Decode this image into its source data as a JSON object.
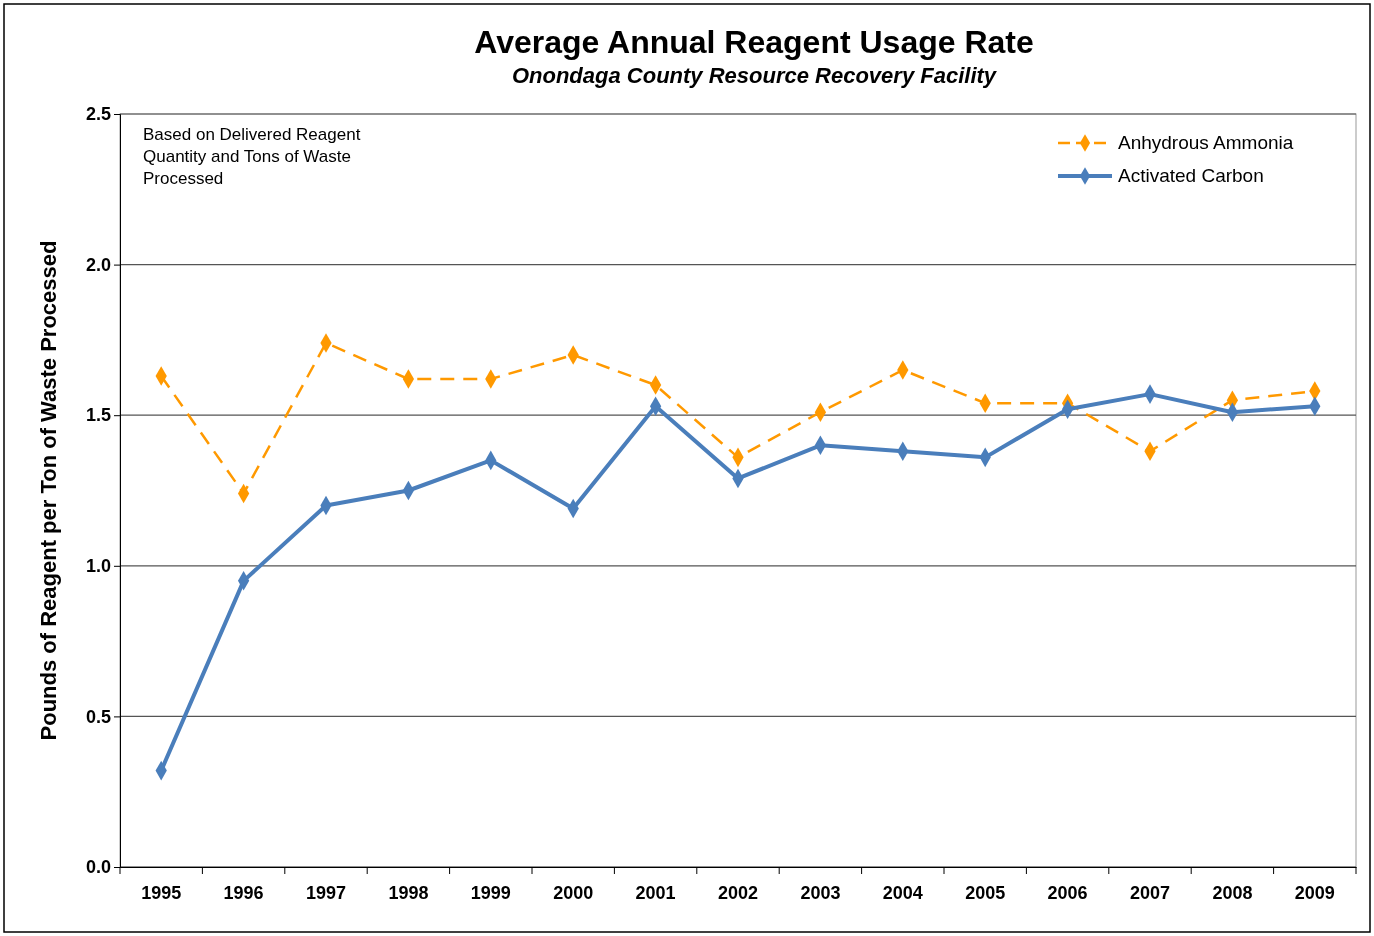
{
  "chart_data": {
    "type": "line",
    "title": "Average Annual Reagent Usage Rate",
    "subtitle": "Onondaga County Resource Recovery Facility",
    "ylabel": "Pounds of Reagent per Ton of Waste Processed",
    "annotations": [
      "Based on Delivered Reagent Quantity and Tons of Waste Processed"
    ],
    "categories": [
      "1995",
      "1996",
      "1997",
      "1998",
      "1999",
      "2000",
      "2001",
      "2002",
      "2003",
      "2004",
      "2005",
      "2006",
      "2007",
      "2008",
      "2009"
    ],
    "series": [
      {
        "name": "Anhydrous Ammonia",
        "color": "#ff9900",
        "line_style": "dashed",
        "values": [
          1.63,
          1.24,
          1.74,
          1.62,
          1.62,
          1.7,
          1.6,
          1.36,
          1.51,
          1.65,
          1.54,
          1.54,
          1.38,
          1.55,
          1.58
        ]
      },
      {
        "name": "Activated Carbon",
        "color": "#4a7ebb",
        "line_style": "solid",
        "values": [
          0.32,
          0.95,
          1.2,
          1.25,
          1.35,
          1.19,
          1.53,
          1.29,
          1.4,
          1.38,
          1.36,
          1.52,
          1.57,
          1.51,
          1.53
        ]
      }
    ],
    "ylim": [
      0,
      2.5
    ],
    "yticks": [
      {
        "value": 0,
        "label": "0.0"
      },
      {
        "value": 0.5,
        "label": "0.5"
      },
      {
        "value": 1,
        "label": "1.0"
      },
      {
        "value": 1.5,
        "label": "1.5"
      },
      {
        "value": 2,
        "label": "2.0"
      },
      {
        "value": 2.5,
        "label": "2.5"
      }
    ],
    "grid": "y",
    "legend": "top right",
    "marker": "diamond"
  }
}
